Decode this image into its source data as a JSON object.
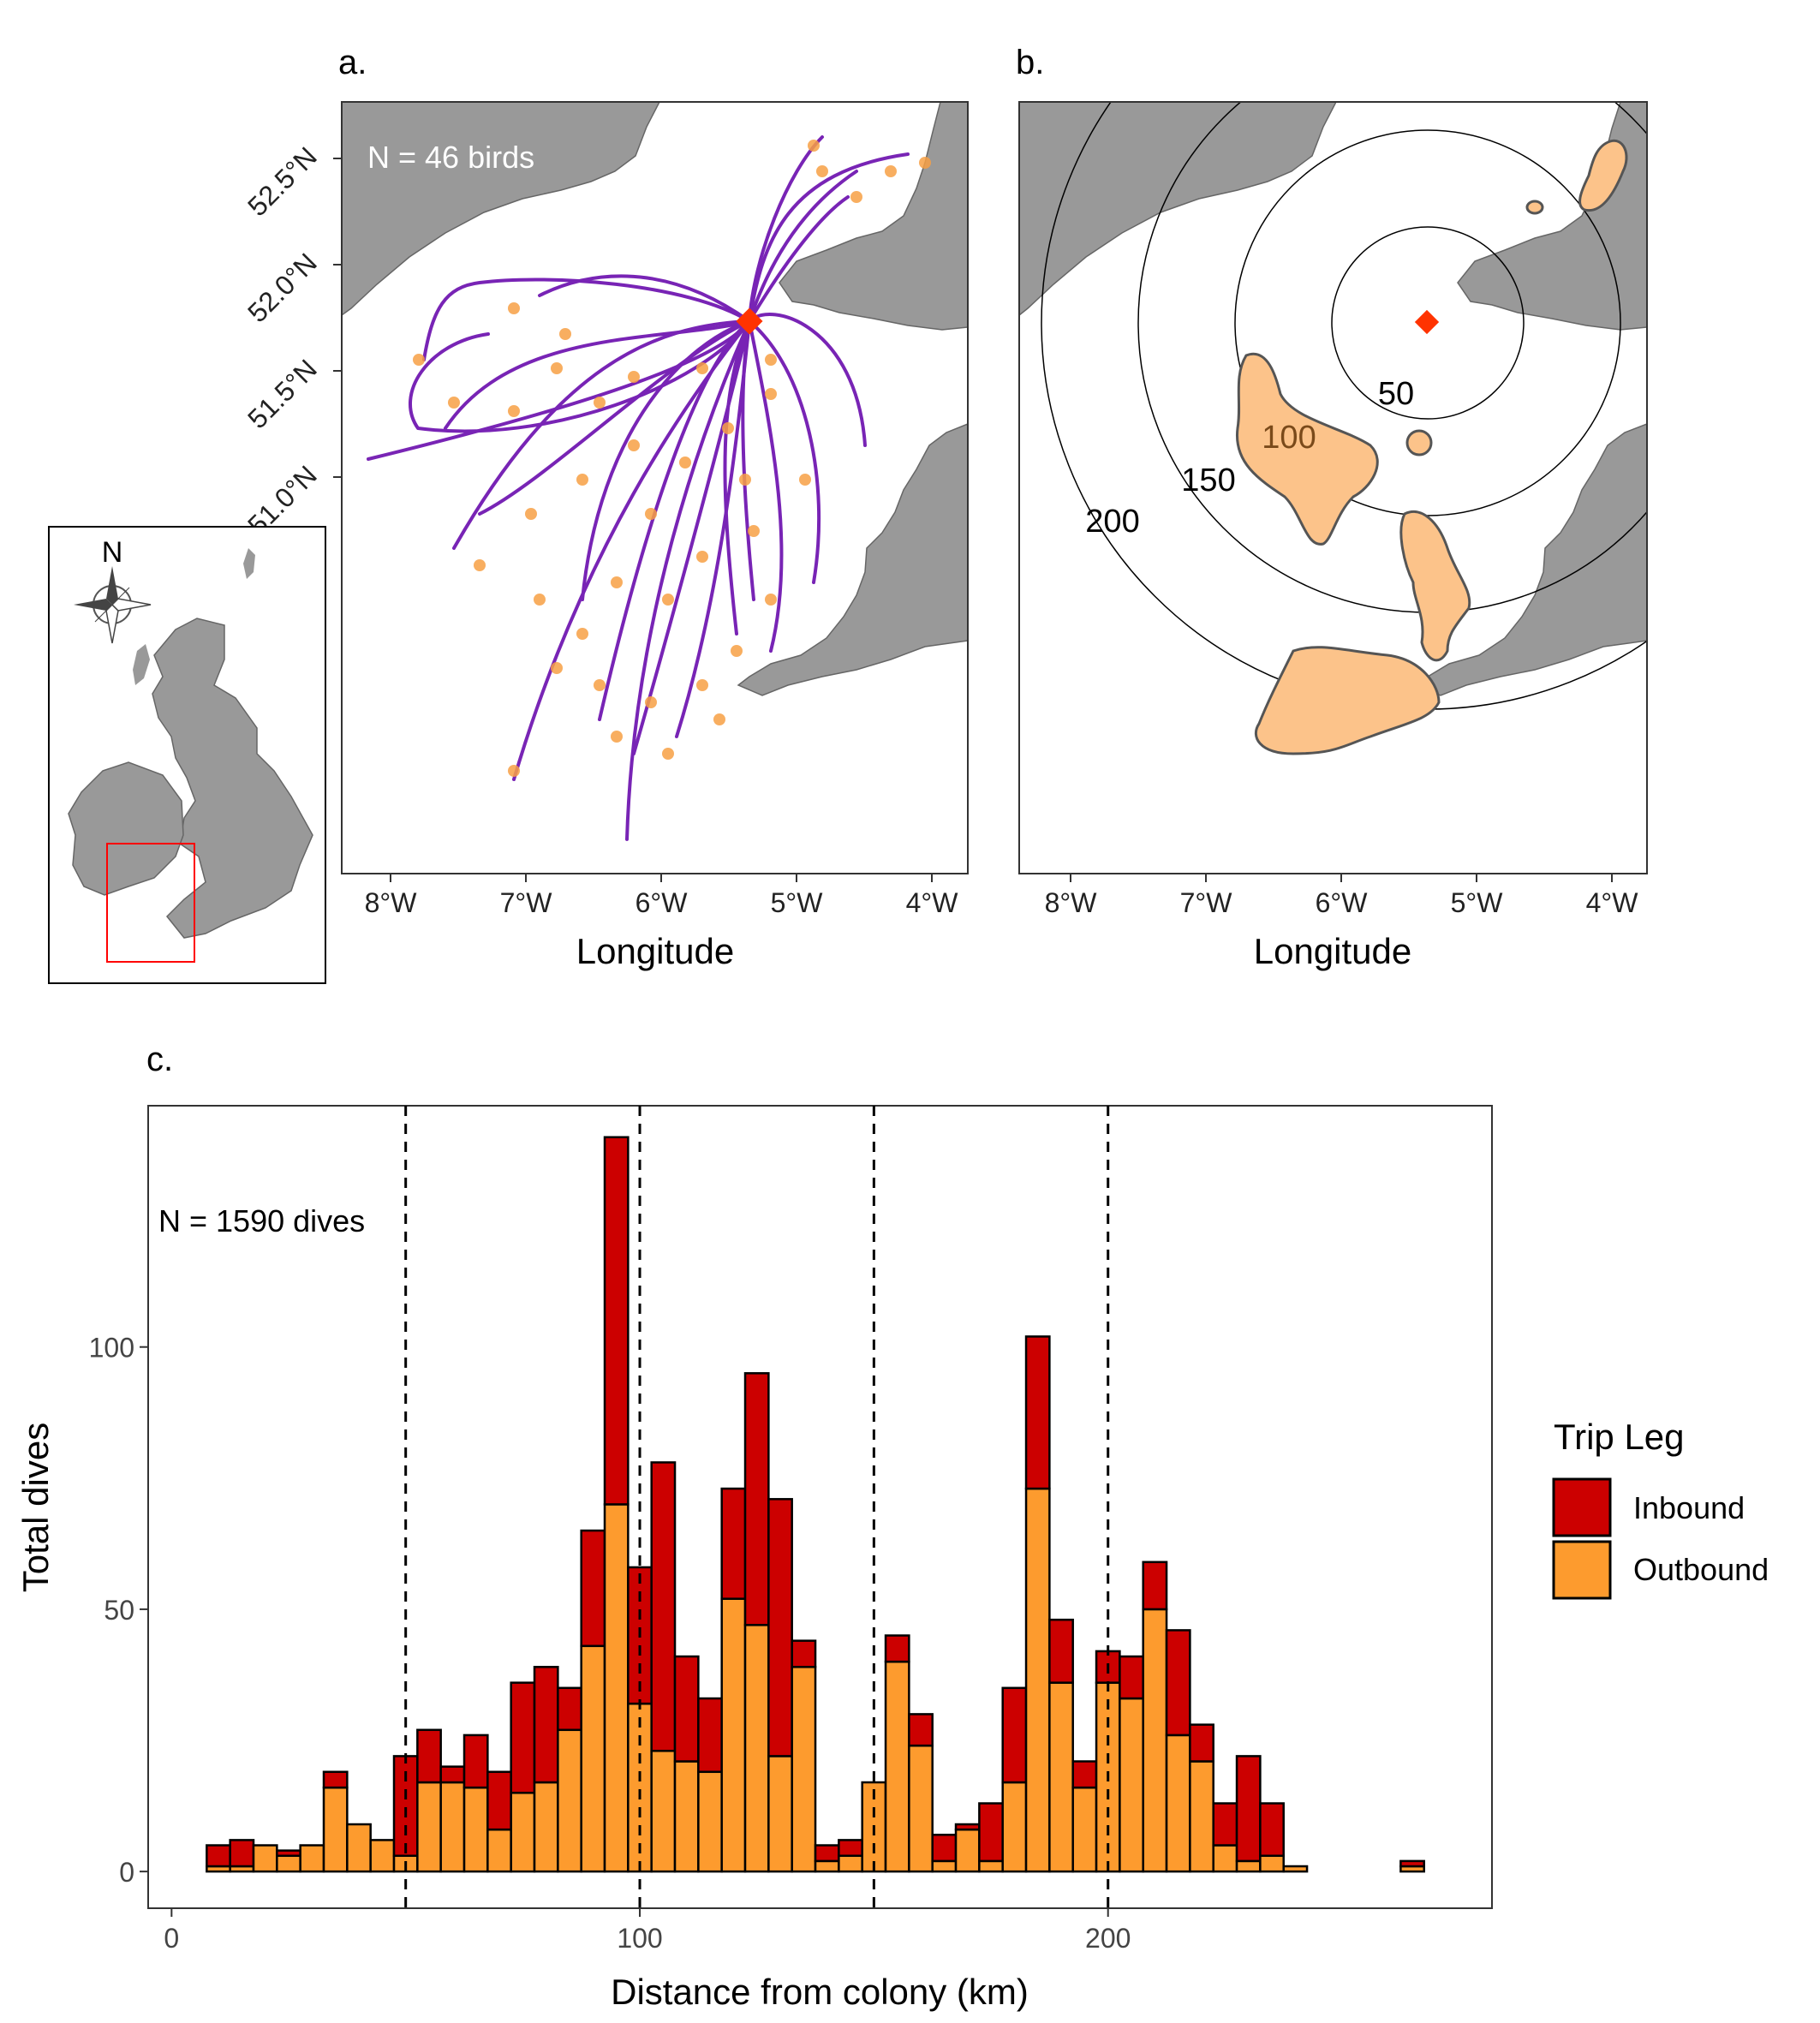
{
  "panels": {
    "a": {
      "label": "a.",
      "annotation": "N = 46 birds",
      "xlabel": "Longitude",
      "x_ticks": [
        "8°W",
        "7°W",
        "6°W",
        "5°W",
        "4°W"
      ],
      "y_ticks": [
        "52.5°N",
        "52.0°N",
        "51.5°N",
        "51.0°N"
      ]
    },
    "b": {
      "label": "b.",
      "xlabel": "Longitude",
      "x_ticks": [
        "8°W",
        "7°W",
        "6°W",
        "5°W",
        "4°W"
      ],
      "ring_labels": [
        "50",
        "100",
        "150",
        "200"
      ]
    },
    "inset": {
      "compass_label": "N"
    },
    "c": {
      "label": "c."
    }
  },
  "colors": {
    "land": "#999999",
    "track": "#6a0dad",
    "dive_point": "#f7a045",
    "colony_marker": "#ff3300",
    "inbound": "#cc0000",
    "outbound": "#fd9b2e",
    "kde_fill": "#fcc38a",
    "inset_box": "#ff0000"
  },
  "chart_data": {
    "type": "bar",
    "stacked": true,
    "annotation": "N = 1590 dives",
    "xlabel": "Distance from colony (km)",
    "ylabel": "Total dives",
    "xlim": [
      -5,
      282
    ],
    "ylim": [
      -7,
      146
    ],
    "x_ticks": [
      0,
      100,
      200
    ],
    "y_ticks": [
      0,
      50,
      100
    ],
    "reference_lines": [
      50,
      100,
      150,
      200
    ],
    "bin_width": 5,
    "bin_centers": [
      10,
      15,
      20,
      25,
      30,
      35,
      40,
      45,
      50,
      55,
      60,
      65,
      70,
      75,
      80,
      85,
      90,
      95,
      100,
      105,
      110,
      115,
      120,
      125,
      130,
      135,
      140,
      145,
      150,
      155,
      160,
      165,
      170,
      175,
      180,
      185,
      190,
      195,
      200,
      205,
      210,
      215,
      220,
      225,
      230,
      235,
      240,
      245,
      250,
      255,
      260,
      265
    ],
    "legend": {
      "title": "Trip Leg",
      "position": "right"
    },
    "series": [
      {
        "name": "Outbound",
        "values": [
          1,
          1,
          5,
          3,
          5,
          16,
          9,
          6,
          3,
          17,
          17,
          16,
          8,
          15,
          17,
          27,
          43,
          70,
          32,
          23,
          21,
          19,
          52,
          47,
          22,
          39,
          2,
          3,
          17,
          40,
          24,
          2,
          8,
          2,
          17,
          73,
          36,
          16,
          36,
          33,
          50,
          26,
          21,
          5,
          2,
          3,
          1,
          0,
          0,
          0,
          0,
          1
        ]
      },
      {
        "name": "Inbound",
        "values": [
          4,
          5,
          0,
          1,
          0,
          3,
          0,
          0,
          19,
          10,
          3,
          10,
          11,
          21,
          22,
          8,
          22,
          70,
          26,
          55,
          20,
          14,
          21,
          48,
          49,
          5,
          3,
          3,
          0,
          5,
          6,
          5,
          1,
          11,
          18,
          29,
          12,
          5,
          6,
          8,
          9,
          20,
          7,
          8,
          20,
          10,
          0,
          0,
          0,
          0,
          0,
          1
        ]
      }
    ],
    "legend_labels": [
      "Inbound",
      "Outbound"
    ]
  }
}
